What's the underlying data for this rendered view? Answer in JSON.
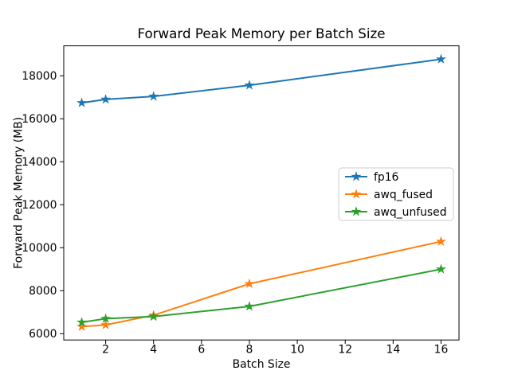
{
  "chart_data": {
    "type": "line",
    "title": "Forward Peak Memory per Batch Size",
    "xlabel": "Batch Size",
    "ylabel": "Forward Peak Memory (MB)",
    "x": [
      1,
      2,
      4,
      8,
      16
    ],
    "series": [
      {
        "name": "fp16",
        "color": "#1f77b4",
        "values": [
          16740,
          16900,
          17040,
          17560,
          18770
        ]
      },
      {
        "name": "awq_fused",
        "color": "#ff7f0e",
        "values": [
          6330,
          6410,
          6860,
          8320,
          10290
        ]
      },
      {
        "name": "awq_unfused",
        "color": "#2ca02c",
        "values": [
          6530,
          6700,
          6800,
          7270,
          9000
        ]
      }
    ],
    "xticks": [
      2,
      4,
      6,
      8,
      10,
      12,
      14,
      16
    ],
    "yticks": [
      6000,
      8000,
      10000,
      12000,
      14000,
      16000,
      18000
    ],
    "xlim": [
      0.25,
      16.75
    ],
    "ylim": [
      5708,
      19392
    ],
    "marker": "star",
    "grid": false,
    "legend_position": "center right",
    "colors": {
      "spine": "#000000",
      "legend_border": "#cccccc",
      "background": "#ffffff",
      "text": "#000000"
    }
  }
}
